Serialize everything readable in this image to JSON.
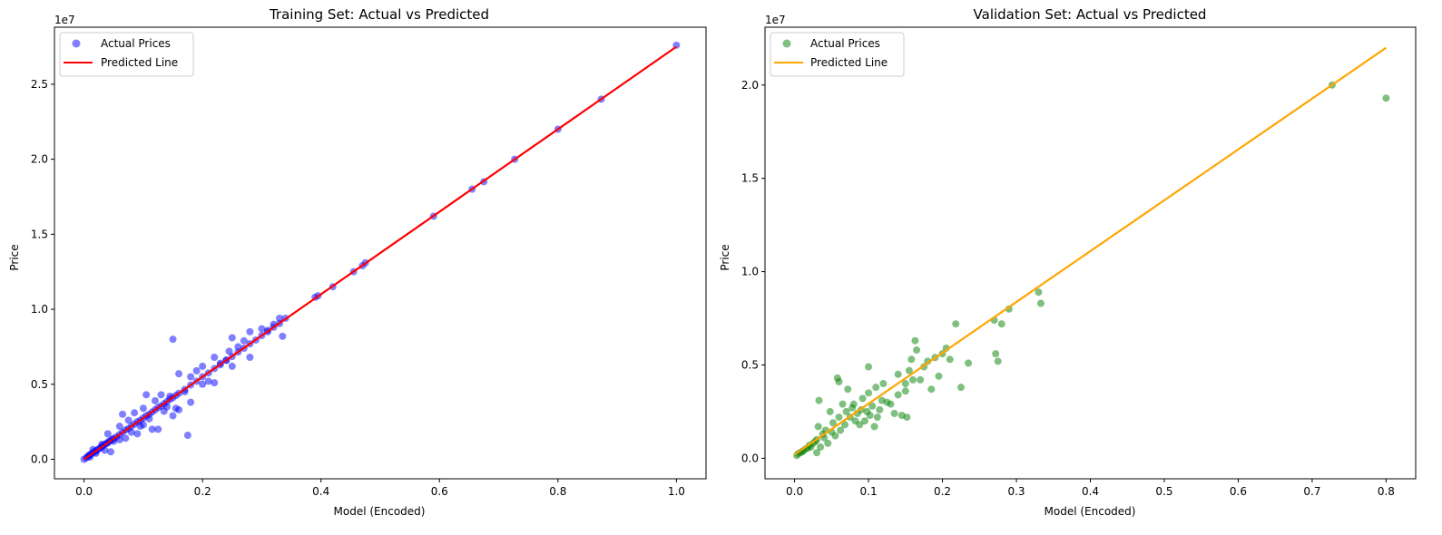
{
  "chart_data": [
    {
      "type": "scatter",
      "title": "Training Set: Actual vs Predicted",
      "xlabel": "Model (Encoded)",
      "ylabel": "Price",
      "offset_label": "1e7",
      "xlim": [
        -0.05,
        1.05
      ],
      "ylim": [
        -1300000,
        28800000
      ],
      "xticks": [
        0.0,
        0.2,
        0.4,
        0.6,
        0.8,
        1.0
      ],
      "xtick_labels": [
        "0.0",
        "0.2",
        "0.4",
        "0.6",
        "0.8",
        "1.0"
      ],
      "yticks": [
        0,
        5000000,
        10000000,
        15000000,
        20000000,
        25000000
      ],
      "ytick_labels": [
        "0.0",
        "0.5",
        "1.0",
        "1.5",
        "2.0",
        "2.5"
      ],
      "legend_position": "top-left",
      "series": [
        {
          "name": "Actual Prices",
          "kind": "scatter",
          "color": "#0000ff",
          "points": [
            [
              0.0,
              0
            ],
            [
              0.004,
              100000
            ],
            [
              0.006,
              180000
            ],
            [
              0.008,
              260000
            ],
            [
              0.01,
              300000
            ],
            [
              0.012,
              350000
            ],
            [
              0.015,
              450000
            ],
            [
              0.018,
              500000
            ],
            [
              0.02,
              550000
            ],
            [
              0.022,
              620000
            ],
            [
              0.025,
              700000
            ],
            [
              0.028,
              760000
            ],
            [
              0.03,
              850000
            ],
            [
              0.032,
              900000
            ],
            [
              0.035,
              1000000
            ],
            [
              0.038,
              1050000
            ],
            [
              0.04,
              1100000
            ],
            [
              0.042,
              1200000
            ],
            [
              0.045,
              1250000
            ],
            [
              0.048,
              1330000
            ],
            [
              0.05,
              1400000
            ],
            [
              0.055,
              1500000
            ],
            [
              0.06,
              1650000
            ],
            [
              0.065,
              1800000
            ],
            [
              0.07,
              1950000
            ],
            [
              0.075,
              2050000
            ],
            [
              0.08,
              2200000
            ],
            [
              0.085,
              2350000
            ],
            [
              0.09,
              2500000
            ],
            [
              0.095,
              2600000
            ],
            [
              0.1,
              2750000
            ],
            [
              0.105,
              2900000
            ],
            [
              0.11,
              3000000
            ],
            [
              0.115,
              3150000
            ],
            [
              0.12,
              3300000
            ],
            [
              0.125,
              3450000
            ],
            [
              0.13,
              3550000
            ],
            [
              0.135,
              3700000
            ],
            [
              0.14,
              3850000
            ],
            [
              0.145,
              4000000
            ],
            [
              0.15,
              4100000
            ],
            [
              0.155,
              4250000
            ],
            [
              0.16,
              4400000
            ],
            [
              0.17,
              4650000
            ],
            [
              0.18,
              4950000
            ],
            [
              0.19,
              5200000
            ],
            [
              0.2,
              5500000
            ],
            [
              0.21,
              5750000
            ],
            [
              0.22,
              6050000
            ],
            [
              0.23,
              6300000
            ],
            [
              0.24,
              6600000
            ],
            [
              0.25,
              6850000
            ],
            [
              0.26,
              7150000
            ],
            [
              0.27,
              7400000
            ],
            [
              0.28,
              7700000
            ],
            [
              0.29,
              7950000
            ],
            [
              0.3,
              8250000
            ],
            [
              0.31,
              8500000
            ],
            [
              0.32,
              8800000
            ],
            [
              0.33,
              9050000
            ],
            [
              0.01,
              150000
            ],
            [
              0.015,
              650000
            ],
            [
              0.02,
              400000
            ],
            [
              0.03,
              1000000
            ],
            [
              0.035,
              600000
            ],
            [
              0.04,
              1700000
            ],
            [
              0.045,
              500000
            ],
            [
              0.05,
              1200000
            ],
            [
              0.06,
              2200000
            ],
            [
              0.06,
              1300000
            ],
            [
              0.065,
              3000000
            ],
            [
              0.07,
              1400000
            ],
            [
              0.075,
              2600000
            ],
            [
              0.08,
              1800000
            ],
            [
              0.085,
              3100000
            ],
            [
              0.09,
              1700000
            ],
            [
              0.095,
              2200000
            ],
            [
              0.1,
              3400000
            ],
            [
              0.1,
              2300000
            ],
            [
              0.105,
              4300000
            ],
            [
              0.11,
              2700000
            ],
            [
              0.115,
              2000000
            ],
            [
              0.12,
              3900000
            ],
            [
              0.125,
              2000000
            ],
            [
              0.13,
              4300000
            ],
            [
              0.135,
              3200000
            ],
            [
              0.14,
              3500000
            ],
            [
              0.145,
              4200000
            ],
            [
              0.15,
              8000000
            ],
            [
              0.15,
              2900000
            ],
            [
              0.155,
              3400000
            ],
            [
              0.16,
              5700000
            ],
            [
              0.16,
              3300000
            ],
            [
              0.17,
              4500000
            ],
            [
              0.175,
              1600000
            ],
            [
              0.18,
              3800000
            ],
            [
              0.18,
              5500000
            ],
            [
              0.19,
              5900000
            ],
            [
              0.2,
              6200000
            ],
            [
              0.2,
              5000000
            ],
            [
              0.21,
              5200000
            ],
            [
              0.22,
              6800000
            ],
            [
              0.22,
              5100000
            ],
            [
              0.23,
              6400000
            ],
            [
              0.24,
              6600000
            ],
            [
              0.245,
              7200000
            ],
            [
              0.25,
              8100000
            ],
            [
              0.25,
              6200000
            ],
            [
              0.26,
              7500000
            ],
            [
              0.27,
              7900000
            ],
            [
              0.28,
              6800000
            ],
            [
              0.28,
              8500000
            ],
            [
              0.3,
              8700000
            ],
            [
              0.31,
              8600000
            ],
            [
              0.32,
              9000000
            ],
            [
              0.33,
              9400000
            ],
            [
              0.335,
              8200000
            ],
            [
              0.34,
              9400000
            ],
            [
              0.39,
              10800000
            ],
            [
              0.395,
              10900000
            ],
            [
              0.42,
              11500000
            ],
            [
              0.455,
              12500000
            ],
            [
              0.47,
              12900000
            ],
            [
              0.475,
              13100000
            ],
            [
              0.59,
              16200000
            ],
            [
              0.655,
              18000000
            ],
            [
              0.675,
              18500000
            ],
            [
              0.727,
              20000000
            ],
            [
              0.8,
              22000000
            ],
            [
              0.873,
              24000000
            ],
            [
              1.0,
              27600000
            ]
          ]
        },
        {
          "name": "Predicted Line",
          "kind": "line",
          "color": "#ff0000",
          "x": [
            0.0,
            1.0
          ],
          "y": [
            0,
            27500000
          ]
        }
      ]
    },
    {
      "type": "scatter",
      "title": "Validation Set: Actual vs Predicted",
      "xlabel": "Model (Encoded)",
      "ylabel": "Price",
      "offset_label": "1e7",
      "xlim": [
        -0.04,
        0.84
      ],
      "ylim": [
        -1100000,
        23100000
      ],
      "xticks": [
        0.0,
        0.1,
        0.2,
        0.3,
        0.4,
        0.5,
        0.6,
        0.7,
        0.8
      ],
      "xtick_labels": [
        "0.0",
        "0.1",
        "0.2",
        "0.3",
        "0.4",
        "0.5",
        "0.6",
        "0.7",
        "0.8"
      ],
      "yticks": [
        0,
        5000000,
        10000000,
        15000000,
        20000000
      ],
      "ytick_labels": [
        "0.0",
        "0.5",
        "1.0",
        "1.5",
        "2.0"
      ],
      "legend_position": "top-left",
      "series": [
        {
          "name": "Actual Prices",
          "kind": "scatter",
          "color": "#008000",
          "points": [
            [
              0.003,
              150000
            ],
            [
              0.005,
              250000
            ],
            [
              0.008,
              300000
            ],
            [
              0.01,
              350000
            ],
            [
              0.012,
              400000
            ],
            [
              0.015,
              500000
            ],
            [
              0.018,
              550000
            ],
            [
              0.02,
              700000
            ],
            [
              0.022,
              600000
            ],
            [
              0.025,
              800000
            ],
            [
              0.028,
              900000
            ],
            [
              0.03,
              1000000
            ],
            [
              0.03,
              300000
            ],
            [
              0.032,
              1700000
            ],
            [
              0.033,
              3100000
            ],
            [
              0.035,
              600000
            ],
            [
              0.038,
              1300000
            ],
            [
              0.04,
              1100000
            ],
            [
              0.042,
              1500000
            ],
            [
              0.045,
              800000
            ],
            [
              0.048,
              2500000
            ],
            [
              0.05,
              1400000
            ],
            [
              0.052,
              1900000
            ],
            [
              0.055,
              1200000
            ],
            [
              0.058,
              4300000
            ],
            [
              0.06,
              4100000
            ],
            [
              0.06,
              2200000
            ],
            [
              0.062,
              1500000
            ],
            [
              0.065,
              2900000
            ],
            [
              0.068,
              1800000
            ],
            [
              0.07,
              2500000
            ],
            [
              0.072,
              3700000
            ],
            [
              0.075,
              2200000
            ],
            [
              0.078,
              2700000
            ],
            [
              0.08,
              2900000
            ],
            [
              0.082,
              2000000
            ],
            [
              0.085,
              2400000
            ],
            [
              0.088,
              1800000
            ],
            [
              0.09,
              2600000
            ],
            [
              0.092,
              3200000
            ],
            [
              0.095,
              2000000
            ],
            [
              0.098,
              2500000
            ],
            [
              0.1,
              3500000
            ],
            [
              0.1,
              4900000
            ],
            [
              0.102,
              2300000
            ],
            [
              0.105,
              2800000
            ],
            [
              0.108,
              1700000
            ],
            [
              0.11,
              3800000
            ],
            [
              0.112,
              2200000
            ],
            [
              0.115,
              2600000
            ],
            [
              0.118,
              3100000
            ],
            [
              0.12,
              4000000
            ],
            [
              0.125,
              3000000
            ],
            [
              0.13,
              2900000
            ],
            [
              0.135,
              2400000
            ],
            [
              0.14,
              4500000
            ],
            [
              0.14,
              3400000
            ],
            [
              0.145,
              2300000
            ],
            [
              0.15,
              3600000
            ],
            [
              0.15,
              4000000
            ],
            [
              0.152,
              2200000
            ],
            [
              0.155,
              4700000
            ],
            [
              0.158,
              5300000
            ],
            [
              0.16,
              4200000
            ],
            [
              0.163,
              6300000
            ],
            [
              0.165,
              5800000
            ],
            [
              0.17,
              4200000
            ],
            [
              0.175,
              4900000
            ],
            [
              0.18,
              5200000
            ],
            [
              0.185,
              3700000
            ],
            [
              0.19,
              5400000
            ],
            [
              0.195,
              4400000
            ],
            [
              0.2,
              5600000
            ],
            [
              0.205,
              5900000
            ],
            [
              0.21,
              5300000
            ],
            [
              0.218,
              7200000
            ],
            [
              0.225,
              3800000
            ],
            [
              0.235,
              5100000
            ],
            [
              0.27,
              7400000
            ],
            [
              0.272,
              5600000
            ],
            [
              0.275,
              5200000
            ],
            [
              0.28,
              7200000
            ],
            [
              0.29,
              8000000
            ],
            [
              0.33,
              8900000
            ],
            [
              0.333,
              8300000
            ],
            [
              0.727,
              20000000
            ],
            [
              0.8,
              19300000
            ]
          ]
        },
        {
          "name": "Predicted Line",
          "kind": "line",
          "color": "#ffa500",
          "x": [
            0.0,
            0.8
          ],
          "y": [
            200000,
            22000000
          ]
        }
      ]
    }
  ]
}
